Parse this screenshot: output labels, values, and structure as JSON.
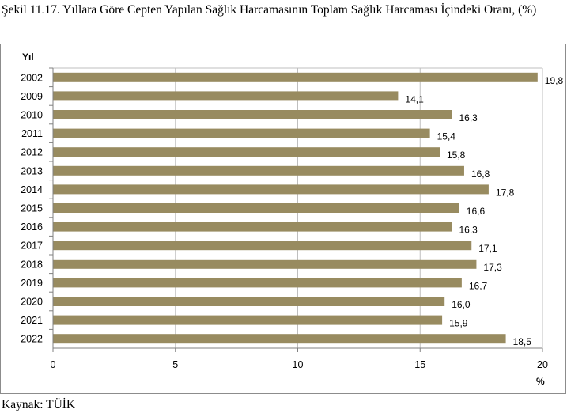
{
  "caption": "Şekil 11.17. Yıllara Göre Cepten Yapılan Sağlık Harcamasının Toplam Sağlık Harcaması İçindeki Oranı, (%)",
  "source": "Kaynak: TÜİK",
  "colors": {
    "bar": "#988b60",
    "grid": "#bfbfbf",
    "frame": "#8c8c8c"
  },
  "chart_data": {
    "type": "bar",
    "orientation": "horizontal",
    "title": "",
    "ylabel": "Yıl",
    "xlabel": "%",
    "xlim": [
      0,
      20
    ],
    "xticks": [
      0,
      5,
      10,
      15,
      20
    ],
    "grid": true,
    "categories": [
      "2002",
      "2009",
      "2010",
      "2011",
      "2012",
      "2013",
      "2014",
      "2015",
      "2016",
      "2017",
      "2018",
      "2019",
      "2020",
      "2021",
      "2022"
    ],
    "values": [
      19.8,
      14.1,
      16.3,
      15.4,
      15.8,
      16.8,
      17.8,
      16.6,
      16.3,
      17.1,
      17.3,
      16.7,
      16.0,
      15.9,
      18.5
    ],
    "value_labels": [
      "19,8",
      "14,1",
      "16,3",
      "15,4",
      "15,8",
      "16,8",
      "17,8",
      "16,6",
      "16,3",
      "17,1",
      "17,3",
      "16,7",
      "16,0",
      "15,9",
      "18,5"
    ]
  }
}
